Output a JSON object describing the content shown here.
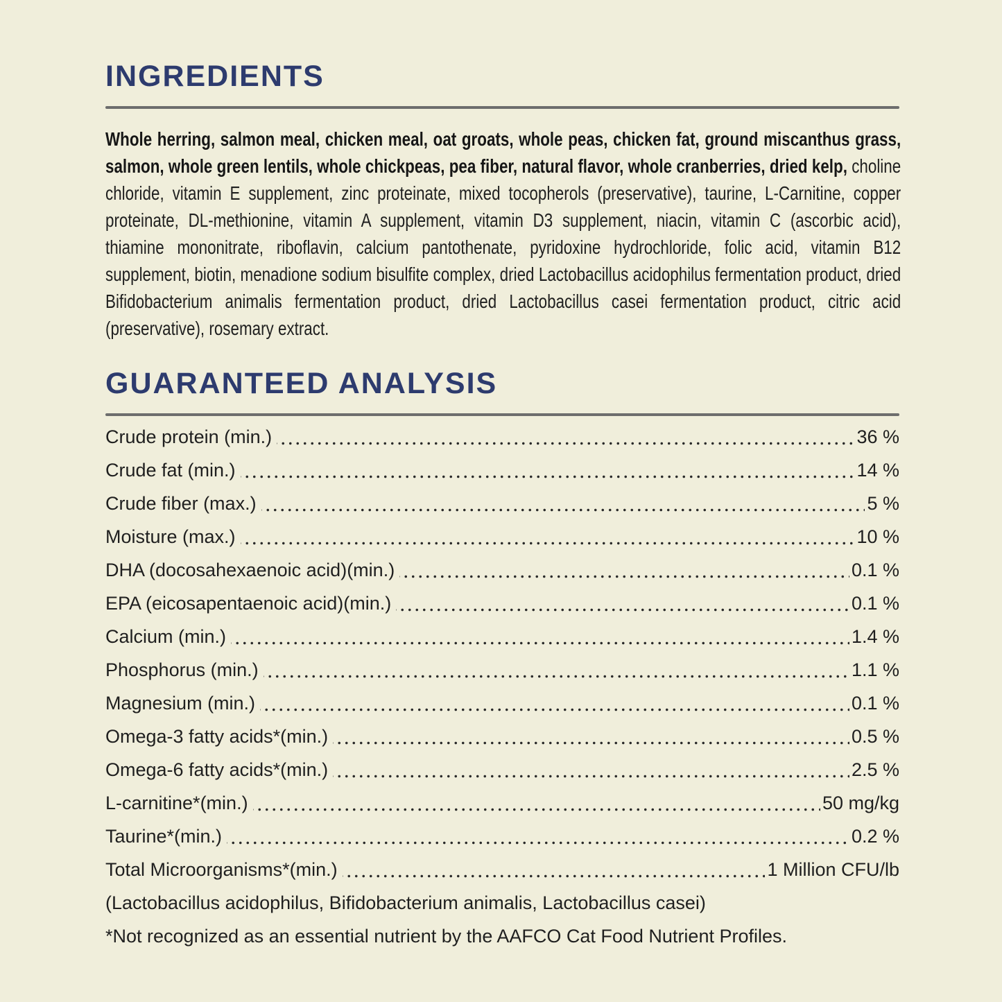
{
  "theme": {
    "background": "#f0eedb",
    "heading": "#2d3b6e",
    "text": "#1f1f1f",
    "rule": "#6d6d6d",
    "dots": "#2a2a2a"
  },
  "ingredients": {
    "title": "INGREDIENTS",
    "bold_text": "Whole herring, salmon meal, chicken meal, oat groats, whole peas, chicken fat, ground miscanthus grass, salmon, whole green lentils, whole chickpeas, pea fiber, natural flavor, whole cranberries, dried kelp,",
    "regular_text": " choline chloride, vitamin E supplement, zinc proteinate, mixed tocopherols (preservative), taurine, L-Carnitine, copper proteinate, DL-methionine, vitamin A supplement, vitamin D3 supplement, niacin, vitamin C (ascorbic acid), thiamine mononitrate, riboflavin, calcium pantothenate, pyridoxine hydrochloride, folic acid, vitamin B12 supplement, biotin, menadione sodium bisulfite complex, dried Lactobacillus acidophilus fermentation product, dried Bifidobacterium animalis fermentation product, dried Lactobacillus casei fermentation product, citric acid (preservative), rosemary extract."
  },
  "guaranteed_analysis": {
    "title": "GUARANTEED ANALYSIS",
    "rows": [
      {
        "label": "Crude protein (min.)",
        "value": "36 %"
      },
      {
        "label": "Crude fat (min.)",
        "value": "14 %"
      },
      {
        "label": "Crude fiber (max.)",
        "value": "5 %"
      },
      {
        "label": "Moisture (max.)",
        "value": "10 %"
      },
      {
        "label": "DHA (docosahexaenoic acid)(min.)",
        "value": "0.1 %"
      },
      {
        "label": "EPA (eicosapentaenoic acid)(min.)",
        "value": "0.1 %"
      },
      {
        "label": "Calcium (min.)",
        "value": "1.4 %"
      },
      {
        "label": "Phosphorus (min.)",
        "value": "1.1 %"
      },
      {
        "label": "Magnesium (min.)",
        "value": "0.1 %"
      },
      {
        "label": "Omega-3 fatty acids*(min.)",
        "value": "0.5 %"
      },
      {
        "label": "Omega-6 fatty acids*(min.)",
        "value": "2.5 %"
      },
      {
        "label": "L-carnitine*(min.)",
        "value": "50 mg/kg"
      },
      {
        "label": "Taurine*(min.)",
        "value": "0.2 %"
      },
      {
        "label": "Total Microorganisms*(min.)",
        "value": "1 Million CFU/lb"
      }
    ],
    "microorganisms_note": "(Lactobacillus acidophilus, Bifidobacterium animalis, Lactobacillus casei)",
    "footnote": "*Not recognized as an essential nutrient by the AAFCO Cat Food Nutrient Profiles."
  }
}
